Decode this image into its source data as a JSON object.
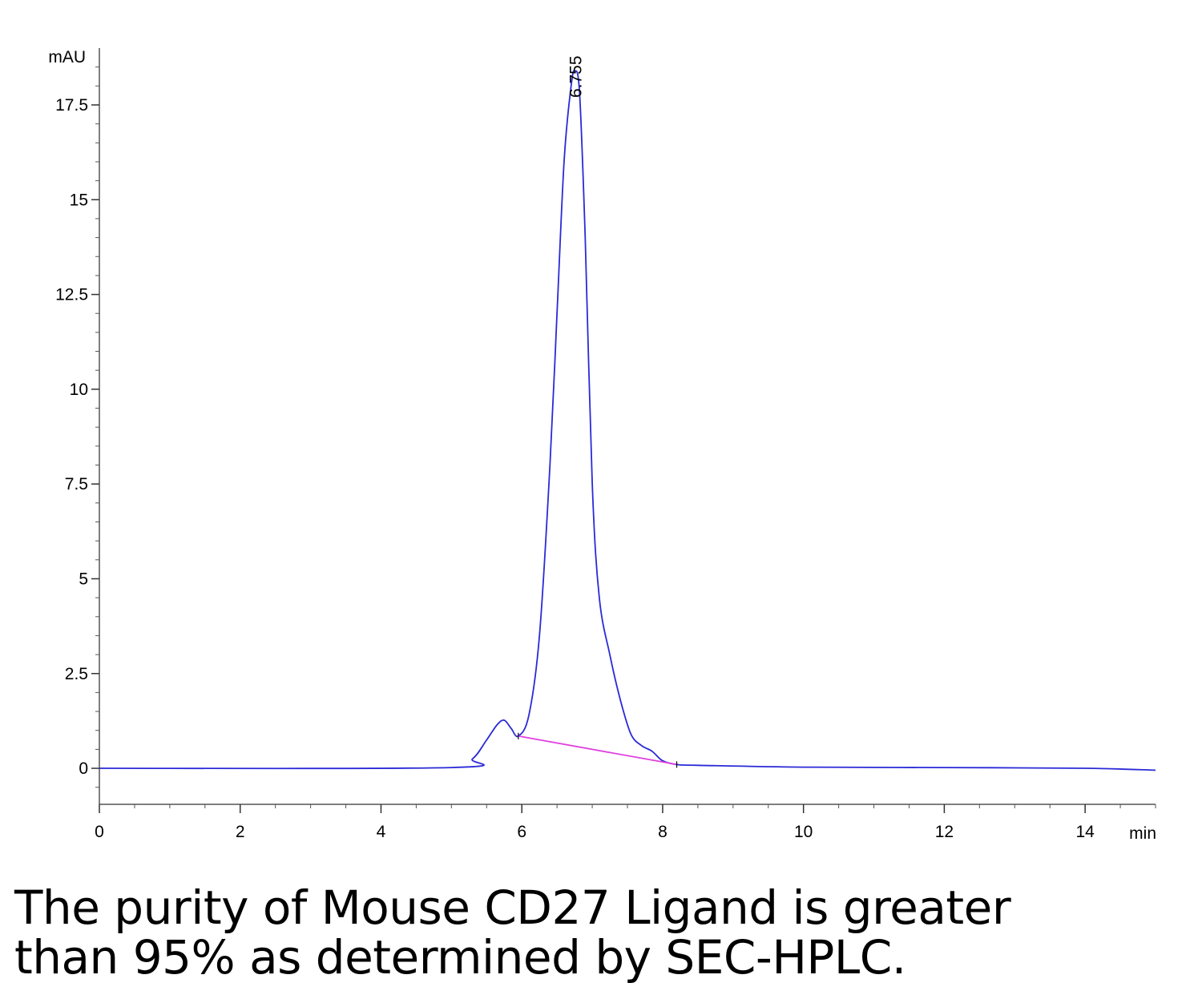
{
  "chart_data": {
    "type": "line",
    "ylabel": "mAU",
    "xlabel": "min",
    "xlim": [
      0,
      15
    ],
    "ylim": [
      -0.95,
      19.0
    ],
    "x_ticks": [
      0,
      2,
      4,
      6,
      8,
      10,
      12,
      14
    ],
    "x_tick_labels": [
      "0",
      "2",
      "4",
      "6",
      "8",
      "10",
      "12",
      "14"
    ],
    "y_ticks": [
      0,
      2.5,
      5,
      7.5,
      10,
      12.5,
      15,
      17.5
    ],
    "y_tick_labels": [
      "0",
      "2.5",
      "5",
      "7.5",
      "10",
      "12.5",
      "15",
      "17.5"
    ],
    "grid": false,
    "peak_annotation": {
      "x": 6.755,
      "label": "6.755"
    },
    "series": [
      {
        "color": "#2a2ad8",
        "x": [
          0,
          5.0,
          5.3,
          5.5,
          5.65,
          5.75,
          5.85,
          5.95,
          6.1,
          6.25,
          6.4,
          6.5,
          6.6,
          6.7,
          6.755,
          6.82,
          6.9,
          7.0,
          7.1,
          7.25,
          7.4,
          7.55,
          7.7,
          7.85,
          8.0,
          8.2,
          8.5,
          10.0,
          12.0,
          14.0,
          15.0
        ],
        "y": [
          0,
          0.02,
          0.25,
          0.75,
          1.15,
          1.27,
          1.05,
          0.85,
          1.4,
          3.5,
          8.0,
          12.0,
          16.0,
          18.0,
          18.4,
          17.8,
          14.0,
          7.5,
          4.5,
          3.0,
          1.8,
          0.9,
          0.6,
          0.45,
          0.2,
          0.1,
          0.08,
          0.03,
          0.02,
          0.0,
          -0.05
        ]
      },
      {
        "color": "#e040e0",
        "x": [
          5.95,
          8.2
        ],
        "y": [
          0.85,
          0.1
        ]
      }
    ]
  },
  "caption": {
    "line1": "The purity of Mouse CD27 Ligand is greater",
    "line2": "than 95% as determined by SEC-HPLC."
  }
}
